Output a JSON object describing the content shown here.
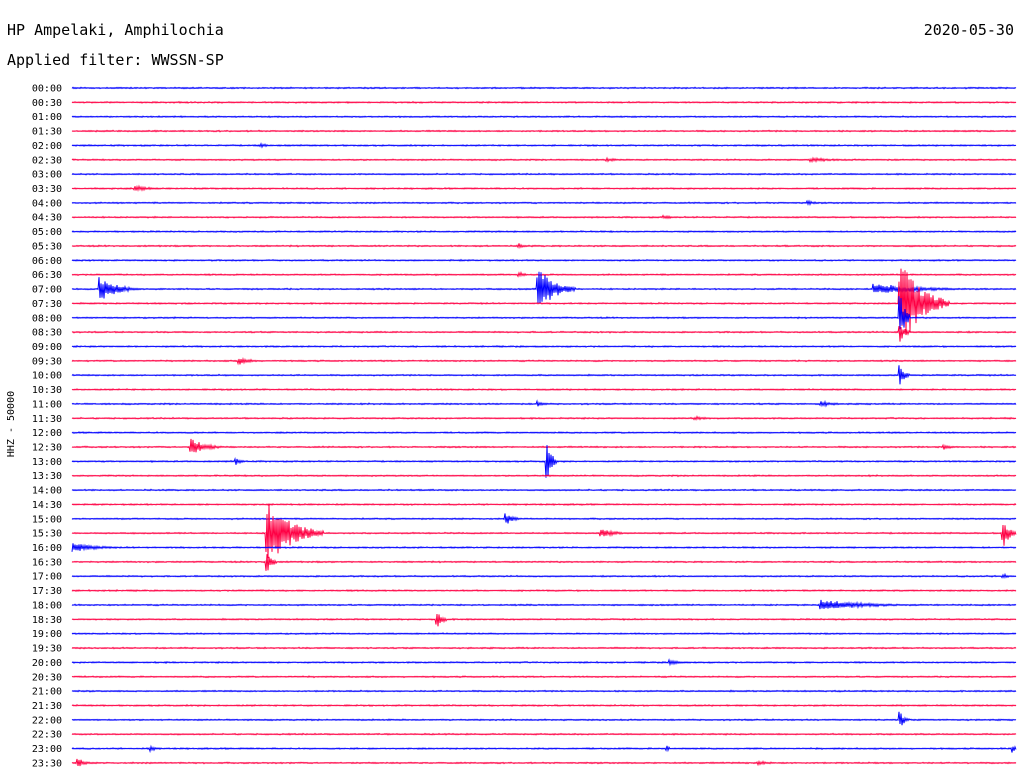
{
  "header": {
    "station": "HP Ampelaki, Amphilochia",
    "filter": "Applied filter: WWSSN-SP",
    "date": "2020-05-30"
  },
  "chart_data": {
    "type": "helicorder",
    "ylabel": "HHZ - 50000",
    "colors": {
      "even_rows": "#0000ff",
      "odd_rows": "#ff0044"
    },
    "rows": [
      "00:00",
      "00:30",
      "01:00",
      "01:30",
      "02:00",
      "02:30",
      "03:00",
      "03:30",
      "04:00",
      "04:30",
      "05:00",
      "05:30",
      "06:00",
      "06:30",
      "07:00",
      "07:30",
      "08:00",
      "08:30",
      "09:00",
      "09:30",
      "10:00",
      "10:30",
      "11:00",
      "11:30",
      "12:00",
      "12:30",
      "13:00",
      "13:30",
      "14:00",
      "14:30",
      "15:00",
      "15:30",
      "16:00",
      "16:30",
      "17:00",
      "17:30",
      "18:00",
      "18:30",
      "19:00",
      "19:30",
      "20:00",
      "20:30",
      "21:00",
      "21:30",
      "22:00",
      "22:30",
      "23:00",
      "23:30"
    ],
    "row_minutes": 30,
    "events": [
      {
        "row": 4,
        "minute": 6.0,
        "amp": 2,
        "duration_min": 0.6
      },
      {
        "row": 5,
        "minute": 17.0,
        "amp": 2,
        "duration_min": 0.8
      },
      {
        "row": 5,
        "minute": 23.5,
        "amp": 2,
        "duration_min": 2.5
      },
      {
        "row": 7,
        "minute": 2.0,
        "amp": 3,
        "duration_min": 1.2
      },
      {
        "row": 8,
        "minute": 23.4,
        "amp": 2,
        "duration_min": 0.6
      },
      {
        "row": 9,
        "minute": 18.8,
        "amp": 2,
        "duration_min": 0.8
      },
      {
        "row": 11,
        "minute": 14.2,
        "amp": 3,
        "duration_min": 0.3
      },
      {
        "row": 13,
        "minute": 14.2,
        "amp": 3,
        "duration_min": 0.4
      },
      {
        "row": 14,
        "minute": 0.9,
        "amp": 14,
        "duration_min": 1.2
      },
      {
        "row": 14,
        "minute": 14.8,
        "amp": 25,
        "duration_min": 1.2
      },
      {
        "row": 14,
        "minute": 25.5,
        "amp": 6,
        "duration_min": 3.5
      },
      {
        "row": 15,
        "minute": 26.3,
        "amp": 50,
        "duration_min": 1.6
      },
      {
        "row": 16,
        "minute": 26.3,
        "amp": 30,
        "duration_min": 0.3
      },
      {
        "row": 17,
        "minute": 26.3,
        "amp": 12,
        "duration_min": 0.3
      },
      {
        "row": 19,
        "minute": 5.3,
        "amp": 4,
        "duration_min": 0.8
      },
      {
        "row": 20,
        "minute": 26.3,
        "amp": 10,
        "duration_min": 0.3
      },
      {
        "row": 22,
        "minute": 14.8,
        "amp": 3,
        "duration_min": 0.4
      },
      {
        "row": 22,
        "minute": 23.8,
        "amp": 3,
        "duration_min": 1.0
      },
      {
        "row": 23,
        "minute": 19.8,
        "amp": 2,
        "duration_min": 1.0
      },
      {
        "row": 25,
        "minute": 3.8,
        "amp": 9,
        "duration_min": 1.0
      },
      {
        "row": 25,
        "minute": 27.7,
        "amp": 3,
        "duration_min": 0.6
      },
      {
        "row": 26,
        "minute": 15.1,
        "amp": 18,
        "duration_min": 0.3
      },
      {
        "row": 26,
        "minute": 5.2,
        "amp": 4,
        "duration_min": 0.3
      },
      {
        "row": 30,
        "minute": 13.8,
        "amp": 6,
        "duration_min": 0.5
      },
      {
        "row": 31,
        "minute": 6.2,
        "amp": 36,
        "duration_min": 1.8
      },
      {
        "row": 31,
        "minute": 16.8,
        "amp": 5,
        "duration_min": 1.0
      },
      {
        "row": 31,
        "minute": 29.6,
        "amp": 14,
        "duration_min": 0.4
      },
      {
        "row": 32,
        "minute": 0.0,
        "amp": 5,
        "duration_min": 1.8
      },
      {
        "row": 33,
        "minute": 6.2,
        "amp": 12,
        "duration_min": 0.3
      },
      {
        "row": 34,
        "minute": 29.6,
        "amp": 3,
        "duration_min": 0.3
      },
      {
        "row": 36,
        "minute": 23.8,
        "amp": 6,
        "duration_min": 3.5
      },
      {
        "row": 37,
        "minute": 11.6,
        "amp": 10,
        "duration_min": 0.3
      },
      {
        "row": 40,
        "minute": 19.0,
        "amp": 3,
        "duration_min": 0.6
      },
      {
        "row": 44,
        "minute": 26.3,
        "amp": 9,
        "duration_min": 0.3
      },
      {
        "row": 46,
        "minute": 2.5,
        "amp": 3,
        "duration_min": 0.4
      },
      {
        "row": 46,
        "minute": 18.9,
        "amp": 4,
        "duration_min": 0.1
      },
      {
        "row": 46,
        "minute": 29.9,
        "amp": 4,
        "duration_min": 0.2
      },
      {
        "row": 47,
        "minute": 0.2,
        "amp": 5,
        "duration_min": 0.4
      },
      {
        "row": 47,
        "minute": 21.8,
        "amp": 2,
        "duration_min": 1.2
      }
    ]
  }
}
